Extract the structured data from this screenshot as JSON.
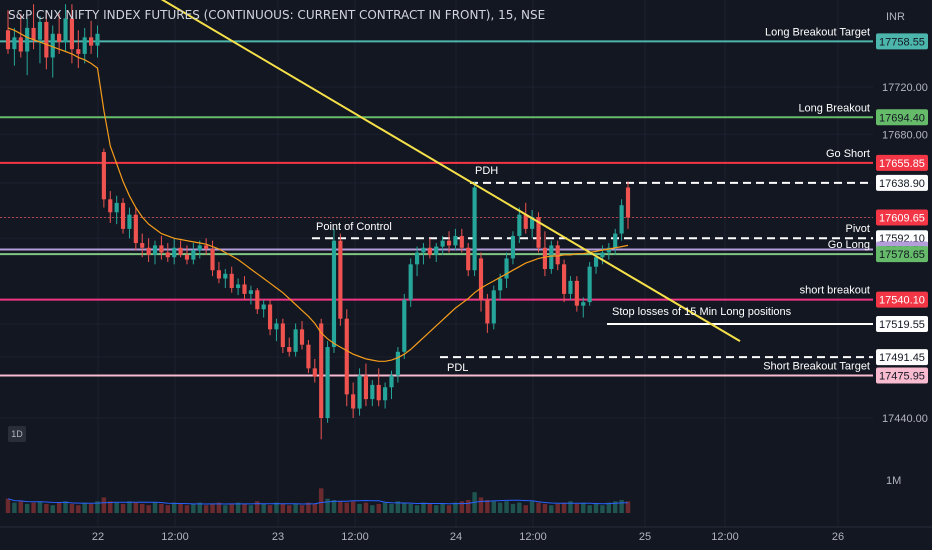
{
  "title": "S&P CNX NIFTY INDEX FUTURES (CONTINUOUS: CURRENT CONTRACT IN FRONT), 15, NSE",
  "currency": "INR",
  "interval_badge": "1D",
  "colors": {
    "background": "#131722",
    "up": "#26a69a",
    "down": "#ef5350",
    "trendline": "#f5e04a",
    "vwap": "#f59c1a",
    "volume_ma": "#2962ff",
    "axis_text": "#b2b5be"
  },
  "chart_data": {
    "type": "candlestick",
    "title": "S&P CNX NIFTY INDEX FUTURES (CONTINUOUS: CURRENT CONTRACT IN FRONT), 15, NSE",
    "ylim": [
      17418,
      17772
    ],
    "y_ticks": [
      17440.0,
      17680.0,
      17720.0
    ],
    "volume_tick": "1M",
    "x_ticks": [
      "22",
      "12:00",
      "23",
      "12:00",
      "24",
      "12:00",
      "25",
      "12:00",
      "26"
    ],
    "candles": [
      {
        "o": 17768,
        "h": 17785,
        "l": 17748,
        "c": 17752
      },
      {
        "o": 17752,
        "h": 17770,
        "l": 17738,
        "c": 17762
      },
      {
        "o": 17762,
        "h": 17782,
        "l": 17745,
        "c": 17750
      },
      {
        "o": 17750,
        "h": 17778,
        "l": 17730,
        "c": 17770
      },
      {
        "o": 17770,
        "h": 17790,
        "l": 17752,
        "c": 17760
      },
      {
        "o": 17760,
        "h": 17780,
        "l": 17740,
        "c": 17775
      },
      {
        "o": 17775,
        "h": 17785,
        "l": 17735,
        "c": 17745
      },
      {
        "o": 17745,
        "h": 17772,
        "l": 17728,
        "c": 17765
      },
      {
        "o": 17765,
        "h": 17782,
        "l": 17748,
        "c": 17758
      },
      {
        "o": 17758,
        "h": 17790,
        "l": 17750,
        "c": 17778
      },
      {
        "o": 17778,
        "h": 17790,
        "l": 17740,
        "c": 17752
      },
      {
        "o": 17752,
        "h": 17768,
        "l": 17736,
        "c": 17748
      },
      {
        "o": 17748,
        "h": 17770,
        "l": 17740,
        "c": 17762
      },
      {
        "o": 17762,
        "h": 17776,
        "l": 17748,
        "c": 17755
      },
      {
        "o": 17755,
        "h": 17772,
        "l": 17745,
        "c": 17765
      },
      {
        "o": 17665,
        "h": 17668,
        "l": 17618,
        "c": 17625
      },
      {
        "o": 17625,
        "h": 17632,
        "l": 17605,
        "c": 17614
      },
      {
        "o": 17614,
        "h": 17628,
        "l": 17604,
        "c": 17622
      },
      {
        "o": 17622,
        "h": 17626,
        "l": 17596,
        "c": 17600
      },
      {
        "o": 17600,
        "h": 17618,
        "l": 17592,
        "c": 17612
      },
      {
        "o": 17612,
        "h": 17618,
        "l": 17582,
        "c": 17588
      },
      {
        "o": 17588,
        "h": 17596,
        "l": 17576,
        "c": 17584
      },
      {
        "o": 17584,
        "h": 17592,
        "l": 17572,
        "c": 17578
      },
      {
        "o": 17578,
        "h": 17590,
        "l": 17570,
        "c": 17586
      },
      {
        "o": 17586,
        "h": 17594,
        "l": 17574,
        "c": 17580
      },
      {
        "o": 17580,
        "h": 17588,
        "l": 17572,
        "c": 17576
      },
      {
        "o": 17576,
        "h": 17592,
        "l": 17570,
        "c": 17584
      },
      {
        "o": 17584,
        "h": 17590,
        "l": 17576,
        "c": 17578
      },
      {
        "o": 17578,
        "h": 17586,
        "l": 17570,
        "c": 17574
      },
      {
        "o": 17574,
        "h": 17588,
        "l": 17570,
        "c": 17582
      },
      {
        "o": 17582,
        "h": 17590,
        "l": 17575,
        "c": 17586
      },
      {
        "o": 17586,
        "h": 17592,
        "l": 17578,
        "c": 17583
      },
      {
        "o": 17583,
        "h": 17590,
        "l": 17560,
        "c": 17565
      },
      {
        "o": 17565,
        "h": 17572,
        "l": 17554,
        "c": 17558
      },
      {
        "o": 17558,
        "h": 17566,
        "l": 17550,
        "c": 17562
      },
      {
        "o": 17562,
        "h": 17568,
        "l": 17546,
        "c": 17550
      },
      {
        "o": 17550,
        "h": 17558,
        "l": 17544,
        "c": 17553
      },
      {
        "o": 17553,
        "h": 17560,
        "l": 17540,
        "c": 17545
      },
      {
        "o": 17545,
        "h": 17552,
        "l": 17536,
        "c": 17548
      },
      {
        "o": 17548,
        "h": 17550,
        "l": 17528,
        "c": 17532
      },
      {
        "o": 17532,
        "h": 17540,
        "l": 17525,
        "c": 17536
      },
      {
        "o": 17536,
        "h": 17540,
        "l": 17510,
        "c": 17515
      },
      {
        "o": 17515,
        "h": 17524,
        "l": 17505,
        "c": 17520
      },
      {
        "o": 17520,
        "h": 17524,
        "l": 17495,
        "c": 17500
      },
      {
        "o": 17500,
        "h": 17508,
        "l": 17492,
        "c": 17496
      },
      {
        "o": 17496,
        "h": 17520,
        "l": 17492,
        "c": 17515
      },
      {
        "o": 17515,
        "h": 17522,
        "l": 17498,
        "c": 17502
      },
      {
        "o": 17502,
        "h": 17506,
        "l": 17478,
        "c": 17482
      },
      {
        "o": 17482,
        "h": 17490,
        "l": 17470,
        "c": 17475
      },
      {
        "o": 17520,
        "h": 17524,
        "l": 17422,
        "c": 17440
      },
      {
        "o": 17440,
        "h": 17505,
        "l": 17436,
        "c": 17500
      },
      {
        "o": 17500,
        "h": 17600,
        "l": 17495,
        "c": 17590
      },
      {
        "o": 17590,
        "h": 17596,
        "l": 17518,
        "c": 17524
      },
      {
        "o": 17524,
        "h": 17532,
        "l": 17450,
        "c": 17460
      },
      {
        "o": 17460,
        "h": 17470,
        "l": 17440,
        "c": 17448
      },
      {
        "o": 17448,
        "h": 17482,
        "l": 17442,
        "c": 17476
      },
      {
        "o": 17476,
        "h": 17486,
        "l": 17450,
        "c": 17456
      },
      {
        "o": 17456,
        "h": 17472,
        "l": 17450,
        "c": 17468
      },
      {
        "o": 17468,
        "h": 17482,
        "l": 17450,
        "c": 17455
      },
      {
        "o": 17455,
        "h": 17470,
        "l": 17448,
        "c": 17466
      },
      {
        "o": 17466,
        "h": 17480,
        "l": 17456,
        "c": 17476
      },
      {
        "o": 17476,
        "h": 17500,
        "l": 17470,
        "c": 17496
      },
      {
        "o": 17496,
        "h": 17545,
        "l": 17490,
        "c": 17540
      },
      {
        "o": 17540,
        "h": 17575,
        "l": 17534,
        "c": 17570
      },
      {
        "o": 17570,
        "h": 17585,
        "l": 17560,
        "c": 17580
      },
      {
        "o": 17580,
        "h": 17588,
        "l": 17570,
        "c": 17584
      },
      {
        "o": 17584,
        "h": 17592,
        "l": 17575,
        "c": 17578
      },
      {
        "o": 17578,
        "h": 17588,
        "l": 17572,
        "c": 17585
      },
      {
        "o": 17585,
        "h": 17594,
        "l": 17578,
        "c": 17590
      },
      {
        "o": 17590,
        "h": 17598,
        "l": 17580,
        "c": 17586
      },
      {
        "o": 17586,
        "h": 17600,
        "l": 17582,
        "c": 17594
      },
      {
        "o": 17594,
        "h": 17600,
        "l": 17580,
        "c": 17584
      },
      {
        "o": 17584,
        "h": 17588,
        "l": 17560,
        "c": 17565
      },
      {
        "o": 17565,
        "h": 17640,
        "l": 17560,
        "c": 17635
      },
      {
        "o": 17575,
        "h": 17580,
        "l": 17530,
        "c": 17540
      },
      {
        "o": 17540,
        "h": 17545,
        "l": 17512,
        "c": 17520
      },
      {
        "o": 17520,
        "h": 17552,
        "l": 17515,
        "c": 17548
      },
      {
        "o": 17548,
        "h": 17562,
        "l": 17540,
        "c": 17558
      },
      {
        "o": 17558,
        "h": 17580,
        "l": 17550,
        "c": 17575
      },
      {
        "o": 17575,
        "h": 17598,
        "l": 17570,
        "c": 17594
      },
      {
        "o": 17594,
        "h": 17618,
        "l": 17588,
        "c": 17612
      },
      {
        "o": 17612,
        "h": 17622,
        "l": 17596,
        "c": 17600
      },
      {
        "o": 17600,
        "h": 17616,
        "l": 17592,
        "c": 17610
      },
      {
        "o": 17610,
        "h": 17614,
        "l": 17580,
        "c": 17584
      },
      {
        "o": 17584,
        "h": 17598,
        "l": 17560,
        "c": 17566
      },
      {
        "o": 17566,
        "h": 17590,
        "l": 17562,
        "c": 17586
      },
      {
        "o": 17586,
        "h": 17590,
        "l": 17565,
        "c": 17570
      },
      {
        "o": 17570,
        "h": 17574,
        "l": 17538,
        "c": 17545
      },
      {
        "o": 17545,
        "h": 17560,
        "l": 17540,
        "c": 17556
      },
      {
        "o": 17556,
        "h": 17560,
        "l": 17530,
        "c": 17535
      },
      {
        "o": 17535,
        "h": 17542,
        "l": 17525,
        "c": 17538
      },
      {
        "o": 17538,
        "h": 17572,
        "l": 17535,
        "c": 17568
      },
      {
        "o": 17568,
        "h": 17580,
        "l": 17562,
        "c": 17576
      },
      {
        "o": 17576,
        "h": 17586,
        "l": 17570,
        "c": 17580
      },
      {
        "o": 17580,
        "h": 17588,
        "l": 17574,
        "c": 17584
      },
      {
        "o": 17584,
        "h": 17600,
        "l": 17578,
        "c": 17596
      },
      {
        "o": 17596,
        "h": 17625,
        "l": 17590,
        "c": 17620
      },
      {
        "o": 17635,
        "h": 17640,
        "l": 17600,
        "c": 17609.65
      }
    ],
    "vwap": [
      17770,
      17768,
      17765,
      17762,
      17760,
      17758,
      17756,
      17754,
      17752,
      17750,
      17748,
      17745,
      17743,
      17740,
      17736,
      17700,
      17670,
      17655,
      17640,
      17628,
      17618,
      17610,
      17604,
      17600,
      17596,
      17594,
      17592,
      17591,
      17590,
      17589,
      17588,
      17587,
      17585,
      17583,
      17580,
      17577,
      17574,
      17570,
      17566,
      17562,
      17558,
      17554,
      17550,
      17546,
      17541,
      17536,
      17531,
      17526,
      17520,
      17512,
      17507,
      17503,
      17500,
      17497,
      17494,
      17492,
      17490,
      17489,
      17488,
      17488,
      17489,
      17491,
      17494,
      17498,
      17503,
      17508,
      17513,
      17518,
      17523,
      17528,
      17533,
      17537,
      17541,
      17546,
      17550,
      17553,
      17556,
      17559,
      17562,
      17565,
      17568,
      17571,
      17573,
      17575,
      17576,
      17577,
      17577,
      17578,
      17578,
      17579,
      17579,
      17580,
      17581,
      17582,
      17583,
      17584,
      17585,
      17586
    ],
    "volume": [
      1.1,
      0.8,
      0.9,
      0.7,
      0.8,
      0.9,
      0.7,
      0.6,
      0.8,
      0.9,
      0.7,
      0.6,
      0.8,
      0.7,
      0.9,
      1.2,
      0.9,
      0.8,
      0.7,
      0.9,
      0.8,
      0.7,
      0.6,
      0.8,
      0.7,
      0.6,
      0.8,
      0.7,
      0.6,
      0.7,
      0.8,
      0.6,
      0.7,
      0.8,
      0.6,
      0.7,
      0.8,
      0.7,
      0.6,
      0.9,
      0.7,
      0.6,
      0.8,
      0.7,
      0.6,
      0.7,
      0.6,
      0.8,
      0.7,
      1.9,
      1.1,
      1.0,
      0.9,
      0.8,
      0.9,
      0.7,
      0.8,
      0.6,
      0.7,
      0.8,
      0.7,
      0.9,
      0.8,
      0.7,
      0.6,
      0.8,
      0.7,
      0.6,
      0.7,
      0.6,
      0.8,
      0.9,
      1.0,
      1.6,
      1.2,
      1.0,
      0.9,
      0.8,
      0.9,
      0.7,
      0.8,
      0.6,
      0.9,
      0.8,
      0.7,
      0.6,
      0.7,
      0.8,
      0.9,
      0.7,
      0.8,
      0.6,
      0.7,
      0.6,
      0.8,
      0.9,
      1.0,
      0.9
    ],
    "trendline": {
      "from": {
        "x": "22",
        "y": 17800
      },
      "to": {
        "x": "25",
        "y": 17505
      }
    },
    "levels": [
      {
        "value": 17758.55,
        "price_label": "17758.55",
        "label": "Long Breakout Target",
        "color": "#4db6ac",
        "tag_bg": "#4db6ac",
        "tag_fg": "#131722",
        "style": "solid"
      },
      {
        "value": 17694.4,
        "price_label": "17694.40",
        "label": "Long Breakout",
        "color": "#66bb6a",
        "tag_bg": "#66bb6a",
        "tag_fg": "#131722",
        "style": "solid"
      },
      {
        "value": 17655.85,
        "price_label": "17655.85",
        "label": "Go Short",
        "color": "#f23645",
        "tag_bg": "#f23645",
        "tag_fg": "#ffffff",
        "style": "solid"
      },
      {
        "value": 17638.9,
        "price_label": "17638.90",
        "label": "",
        "color": "#ffffff",
        "tag_bg": "#ffffff",
        "tag_fg": "#131722",
        "style": "dashed"
      },
      {
        "value": 17609.65,
        "price_label": "17609.65",
        "label": "",
        "color": "#ef5350",
        "tag_bg": "#f23645",
        "tag_fg": "#ffffff",
        "style": "dotted"
      },
      {
        "value": 17592.1,
        "price_label": "17592.10",
        "label": "Pivot",
        "color": "#ffffff",
        "tag_bg": "#ffffff",
        "tag_fg": "#131722",
        "style": "dashed"
      },
      {
        "value": 17582.5,
        "price_label": "17582.50",
        "label": "",
        "color": "#b39ddb",
        "tag_bg": "#b39ddb",
        "tag_fg": "#131722",
        "style": "solid"
      },
      {
        "value": 17578.65,
        "price_label": "17578.65",
        "label": "Go Long",
        "color": "#81c784",
        "tag_bg": "#66bb6a",
        "tag_fg": "#131722",
        "style": "solid"
      },
      {
        "value": 17540.1,
        "price_label": "17540.10",
        "label": "short breakout",
        "color": "#f23685",
        "tag_bg": "#f23645",
        "tag_fg": "#ffffff",
        "style": "solid"
      },
      {
        "value": 17519.55,
        "price_label": "17519.55",
        "label": "",
        "color": "#ffffff",
        "tag_bg": "#ffffff",
        "tag_fg": "#131722",
        "style": "solid"
      },
      {
        "value": 17491.45,
        "price_label": "17491.45",
        "label": "",
        "color": "#ffffff",
        "tag_bg": "#ffffff",
        "tag_fg": "#131722",
        "style": "dashed"
      },
      {
        "value": 17475.95,
        "price_label": "17475.95",
        "label": "Short  Breakout Target",
        "color": "#f8bbd0",
        "tag_bg": "#f8bbd0",
        "tag_fg": "#131722",
        "style": "solid"
      }
    ],
    "annotations": [
      "PDH",
      "Point of Control",
      "PDL",
      "Stop losses of 15 Min Long positions"
    ]
  }
}
